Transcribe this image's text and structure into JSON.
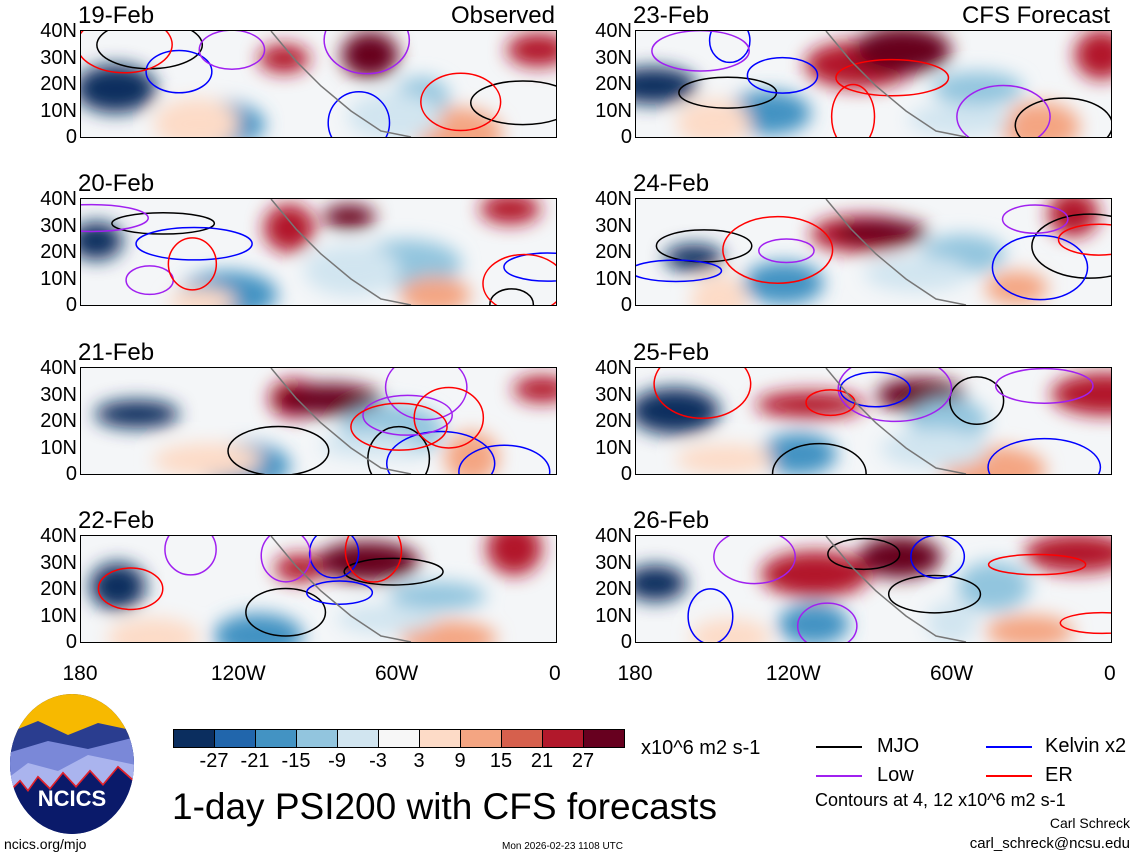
{
  "panels": [
    {
      "date": "19-Feb",
      "tag": "Observed"
    },
    {
      "date": "20-Feb"
    },
    {
      "date": "21-Feb"
    },
    {
      "date": "22-Feb"
    },
    {
      "date": "23-Feb",
      "tag": "CFS Forecast"
    },
    {
      "date": "24-Feb"
    },
    {
      "date": "25-Feb"
    },
    {
      "date": "26-Feb"
    }
  ],
  "y_ticks": [
    "40N",
    "30N",
    "20N",
    "10N",
    "0"
  ],
  "x_ticks": [
    "180",
    "120W",
    "60W",
    "0"
  ],
  "colorbar": {
    "colors": [
      "#0b2e5f",
      "#2166ac",
      "#4393c3",
      "#92c5de",
      "#d1e5f0",
      "#f7f7f7",
      "#fddbc7",
      "#f4a582",
      "#d6604d",
      "#b2182b",
      "#67001f"
    ],
    "labels": [
      "-27",
      "-21",
      "-15",
      "-9",
      "-3",
      "3",
      "9",
      "15",
      "21",
      "27"
    ],
    "units": "x10^6 m2 s-1"
  },
  "legend": [
    {
      "label": "MJO",
      "color": "#000000"
    },
    {
      "label": "Kelvin x2",
      "color": "#0000ff"
    },
    {
      "label": "Low",
      "color": "#a020f0"
    },
    {
      "label": "ER",
      "color": "#ff0000"
    }
  ],
  "title": "1-day PSI200 with CFS forecasts",
  "contours_note": "Contours at 4, 12 x10^6 m2 s-1",
  "author": "Carl Schreck",
  "email": "carl_schreck@ncsu.edu",
  "site": "ncics.org/mjo",
  "timestamp": "Mon 2026-02-23 1108 UTC",
  "logo_text": "NCICS"
}
